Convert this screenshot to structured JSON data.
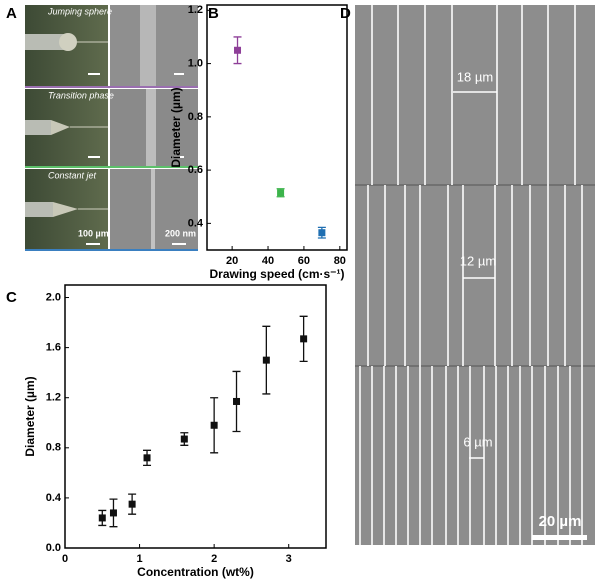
{
  "panels": {
    "a": "A",
    "b": "B",
    "c": "C",
    "d": "D"
  },
  "panel_a": {
    "rows": [
      "Jumping sphere",
      "Transition phase",
      "Constant jet"
    ],
    "scale_left": "100 µm",
    "scale_right": "200 nm"
  },
  "panel_d": {
    "spacings": [
      "18 µm",
      "12 µm",
      "6 µm"
    ],
    "scale": "20 µm"
  },
  "chart_data": [
    {
      "type": "scatter",
      "ylabel": "Diameter (µm)",
      "xlabel": "Drawing speed (cm·s⁻¹)",
      "x": [
        23,
        47,
        70
      ],
      "values": [
        1.05,
        0.515,
        0.365
      ],
      "errors": [
        0.05,
        0.015,
        0.02
      ],
      "colors": [
        "#8e3f98",
        "#3cb44b",
        "#1f6fb2"
      ],
      "xlim": [
        6,
        84
      ],
      "xticks": [
        20,
        40,
        60,
        80
      ],
      "ylim": [
        0.3,
        1.22
      ],
      "yticks": [
        0.4,
        0.6,
        0.8,
        {
          "value": 1,
          "label": "1.0"
        },
        1.2
      ]
    },
    {
      "type": "scatter",
      "ylabel": "Diameter (µm)",
      "xlabel": "Concentration (wt%)",
      "x": [
        0.5,
        0.65,
        0.9,
        1.1,
        1.6,
        2.0,
        2.3,
        2.7,
        3.2
      ],
      "values": [
        0.24,
        0.28,
        0.35,
        0.72,
        0.87,
        0.98,
        1.17,
        1.5,
        1.67
      ],
      "errors": [
        0.06,
        0.11,
        0.08,
        0.06,
        0.05,
        0.22,
        0.24,
        0.27,
        0.18
      ],
      "color": "#111111",
      "xlim": [
        0,
        3.5
      ],
      "xticks": [
        0,
        1,
        2,
        3
      ],
      "ylim": [
        0,
        2.1
      ],
      "yticks": [
        {
          "value": 0,
          "label": "0.0"
        },
        0.4,
        0.8,
        1.2,
        1.6,
        {
          "value": 2,
          "label": "2.0"
        }
      ]
    }
  ]
}
